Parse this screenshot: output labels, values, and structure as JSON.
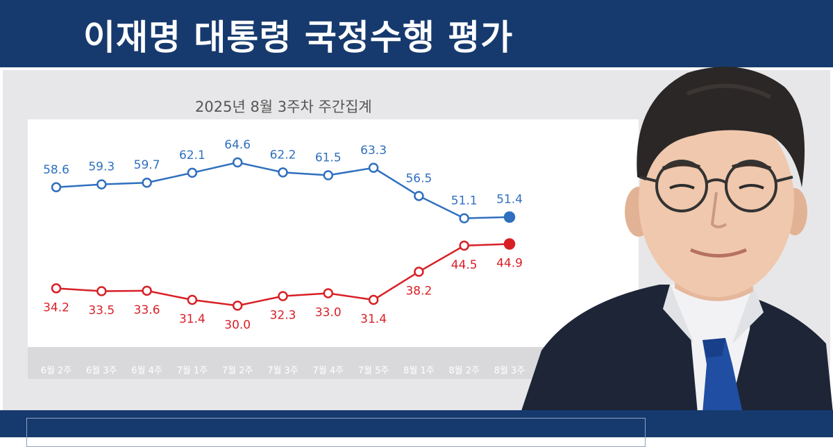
{
  "header": {
    "title": "이재명 대통령 국정수행 평가"
  },
  "subtitle": "2025년 8월 3주차 주간집계",
  "colors": {
    "header_bg": "#173a6e",
    "positive": "#2f6fbf",
    "negative": "#d81f26"
  },
  "chart_data": {
    "type": "line",
    "title": "2025년 8월 3주차 주간집계",
    "categories": [
      "6월 2주",
      "6월 3주",
      "6월 4주",
      "7월 1주",
      "7월 2주",
      "7월 3주",
      "7월 4주",
      "7월 5주",
      "8월 1주",
      "8월 2주",
      "8월 3주"
    ],
    "series": [
      {
        "values": [
          58.6,
          59.3,
          59.7,
          62.1,
          64.6,
          62.2,
          61.5,
          63.3,
          56.5,
          51.1,
          51.4
        ],
        "color": "#2f6fbf"
      },
      {
        "values": [
          34.2,
          33.5,
          33.6,
          31.4,
          30.0,
          32.3,
          33.0,
          31.4,
          38.2,
          44.5,
          44.9
        ],
        "color": "#d81f26"
      }
    ],
    "value_labels": [
      [
        "58.6",
        "59.3",
        "59.7",
        "62.1",
        "64.6",
        "62.2",
        "61.5",
        "63.3",
        "56.5",
        "51.1",
        "51.4"
      ],
      [
        "34.2",
        "33.5",
        "33.6",
        "31.4",
        "30.0",
        "32.3",
        "33.0",
        "31.4",
        "38.2",
        "44.5",
        "44.9"
      ]
    ],
    "ylim": [
      20,
      75
    ],
    "grid": false,
    "legend": "none"
  }
}
